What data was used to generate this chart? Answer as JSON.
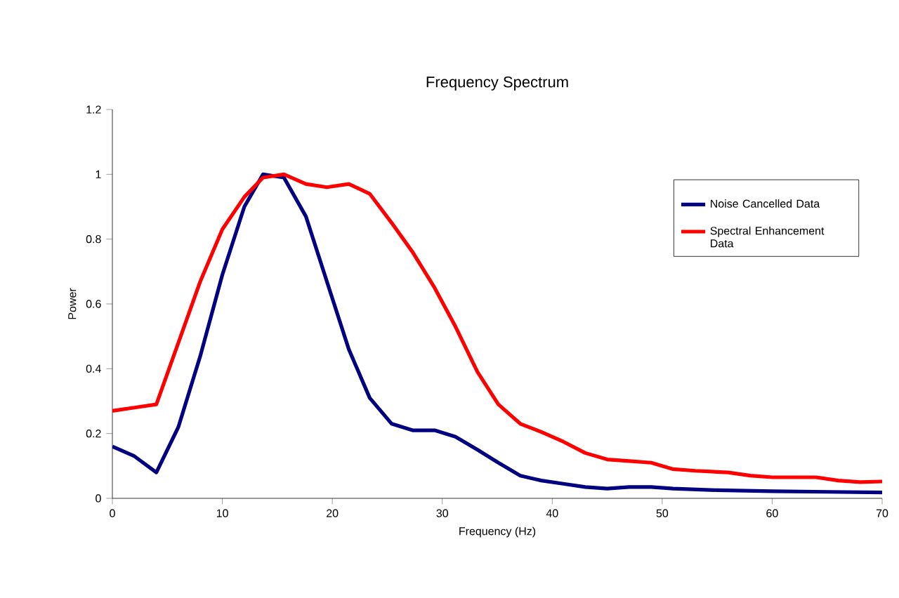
{
  "chart_data": {
    "type": "line",
    "title": "Frequency Spectrum",
    "xlabel": "Frequency (Hz)",
    "ylabel": "Power",
    "xlim": [
      0,
      70
    ],
    "ylim": [
      0,
      1.2
    ],
    "xticks": [
      0,
      10,
      20,
      30,
      40,
      50,
      60,
      70
    ],
    "yticks": [
      {
        "value": 0,
        "label": "0"
      },
      {
        "value": 0.2,
        "label": "0.2"
      },
      {
        "value": 0.4,
        "label": "0.4"
      },
      {
        "value": 0.6,
        "label": "0.6"
      },
      {
        "value": 0.8,
        "label": "0.8"
      },
      {
        "value": 1,
        "label": "1"
      },
      {
        "value": 1.2,
        "label": "1.2"
      }
    ],
    "grid": false,
    "legend": "top right",
    "marker": "none",
    "line_style": "solid",
    "series": [
      {
        "name": "Noise Cancelled Data",
        "color": "#000080",
        "x": [
          0,
          2,
          4,
          6,
          8,
          10,
          12,
          13.7,
          15.6,
          17.6,
          19.5,
          21.5,
          23.4,
          25.4,
          27.3,
          29.3,
          31.2,
          33.2,
          35.1,
          37.1,
          39,
          41,
          43,
          45,
          47,
          49,
          51,
          55,
          60,
          65,
          70
        ],
        "values": [
          0.16,
          0.13,
          0.08,
          0.22,
          0.44,
          0.69,
          0.9,
          1.0,
          0.99,
          0.87,
          0.67,
          0.46,
          0.31,
          0.23,
          0.21,
          0.21,
          0.19,
          0.15,
          0.11,
          0.07,
          0.055,
          0.045,
          0.035,
          0.03,
          0.035,
          0.035,
          0.03,
          0.025,
          0.022,
          0.02,
          0.018
        ]
      },
      {
        "name": "Spectral Enhancement Data",
        "color": "#ff0000",
        "x": [
          0,
          2,
          4,
          6,
          8,
          10,
          12,
          13.7,
          15.6,
          17.6,
          19.5,
          21.5,
          23.4,
          25.4,
          27.3,
          29.3,
          31.2,
          33.2,
          35.1,
          37.1,
          39,
          41,
          43,
          45,
          47,
          49,
          51,
          53,
          56,
          58,
          60,
          64,
          66,
          68,
          70
        ],
        "values": [
          0.27,
          0.28,
          0.29,
          0.48,
          0.67,
          0.83,
          0.93,
          0.99,
          1.0,
          0.97,
          0.96,
          0.97,
          0.94,
          0.85,
          0.76,
          0.65,
          0.53,
          0.39,
          0.29,
          0.23,
          0.205,
          0.175,
          0.14,
          0.12,
          0.115,
          0.11,
          0.09,
          0.085,
          0.08,
          0.07,
          0.065,
          0.065,
          0.055,
          0.05,
          0.052
        ]
      }
    ]
  }
}
